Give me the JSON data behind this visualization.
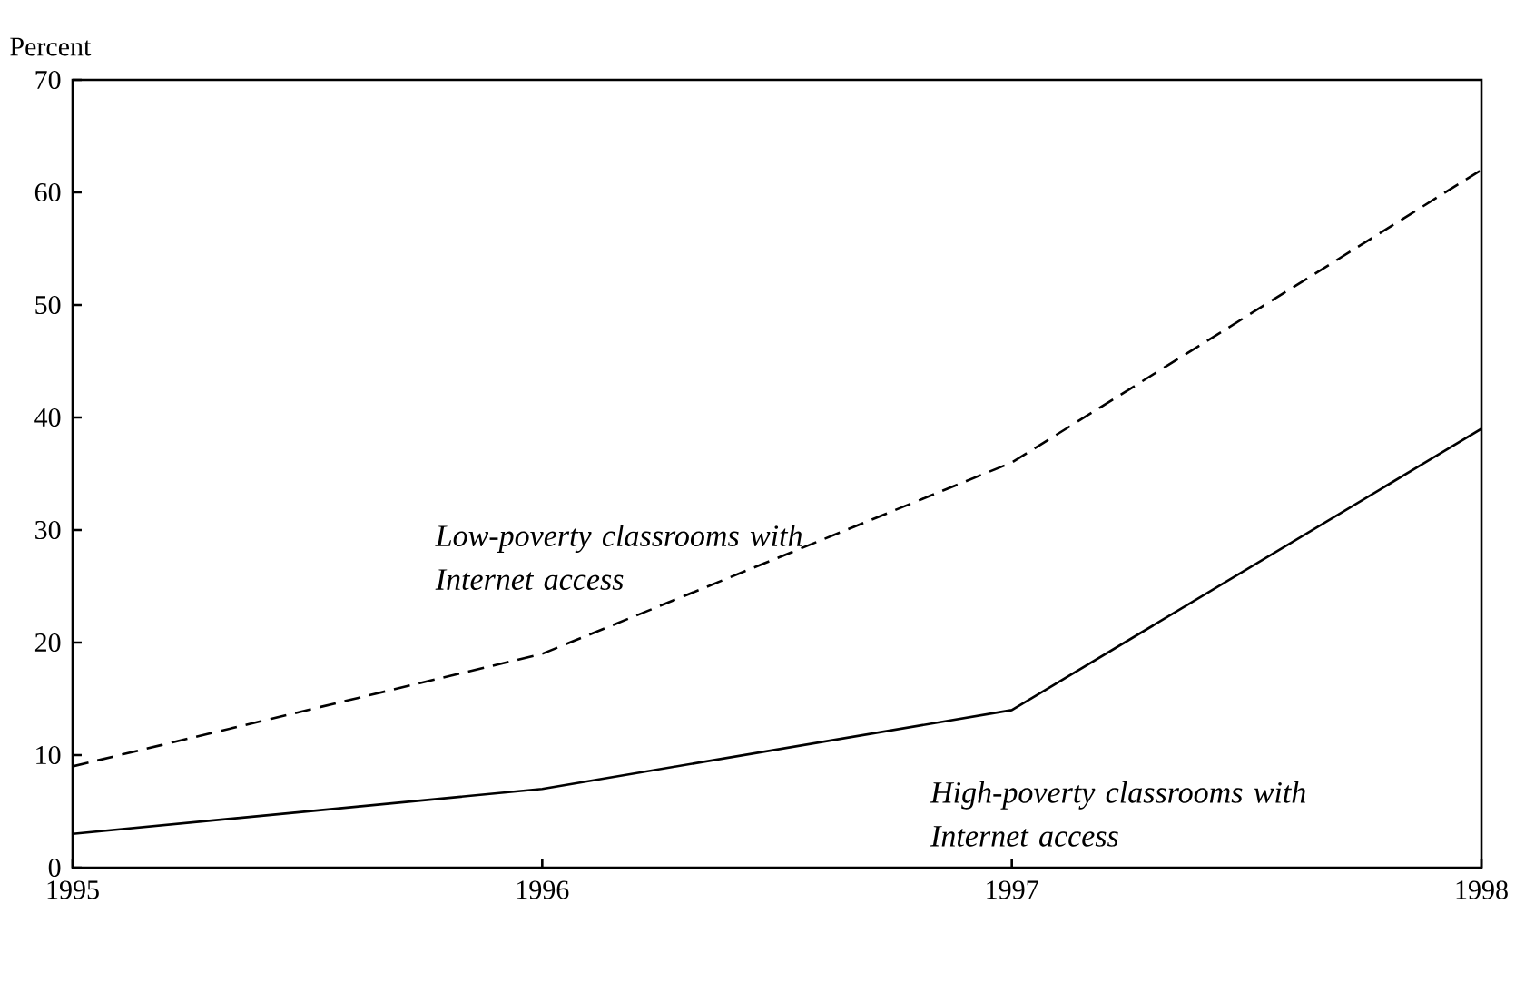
{
  "chart_data": {
    "type": "line",
    "ylabel": "Percent",
    "x": [
      1995,
      1996,
      1997,
      1998
    ],
    "xlim": [
      1995,
      1998
    ],
    "xticks": [
      1995,
      1996,
      1997,
      1998
    ],
    "ylim": [
      0,
      70
    ],
    "yticks": [
      0,
      10,
      20,
      30,
      40,
      50,
      60,
      70
    ],
    "grid": false,
    "marker": "none",
    "series": [
      {
        "name": "Low-poverty classrooms with Internet access",
        "color": "#000000",
        "line_style": "dashed",
        "values": [
          9,
          19,
          36,
          62
        ]
      },
      {
        "name": "High-poverty classrooms with Internet access",
        "color": "#000000",
        "line_style": "solid",
        "values": [
          3,
          7,
          14,
          39
        ]
      }
    ]
  }
}
